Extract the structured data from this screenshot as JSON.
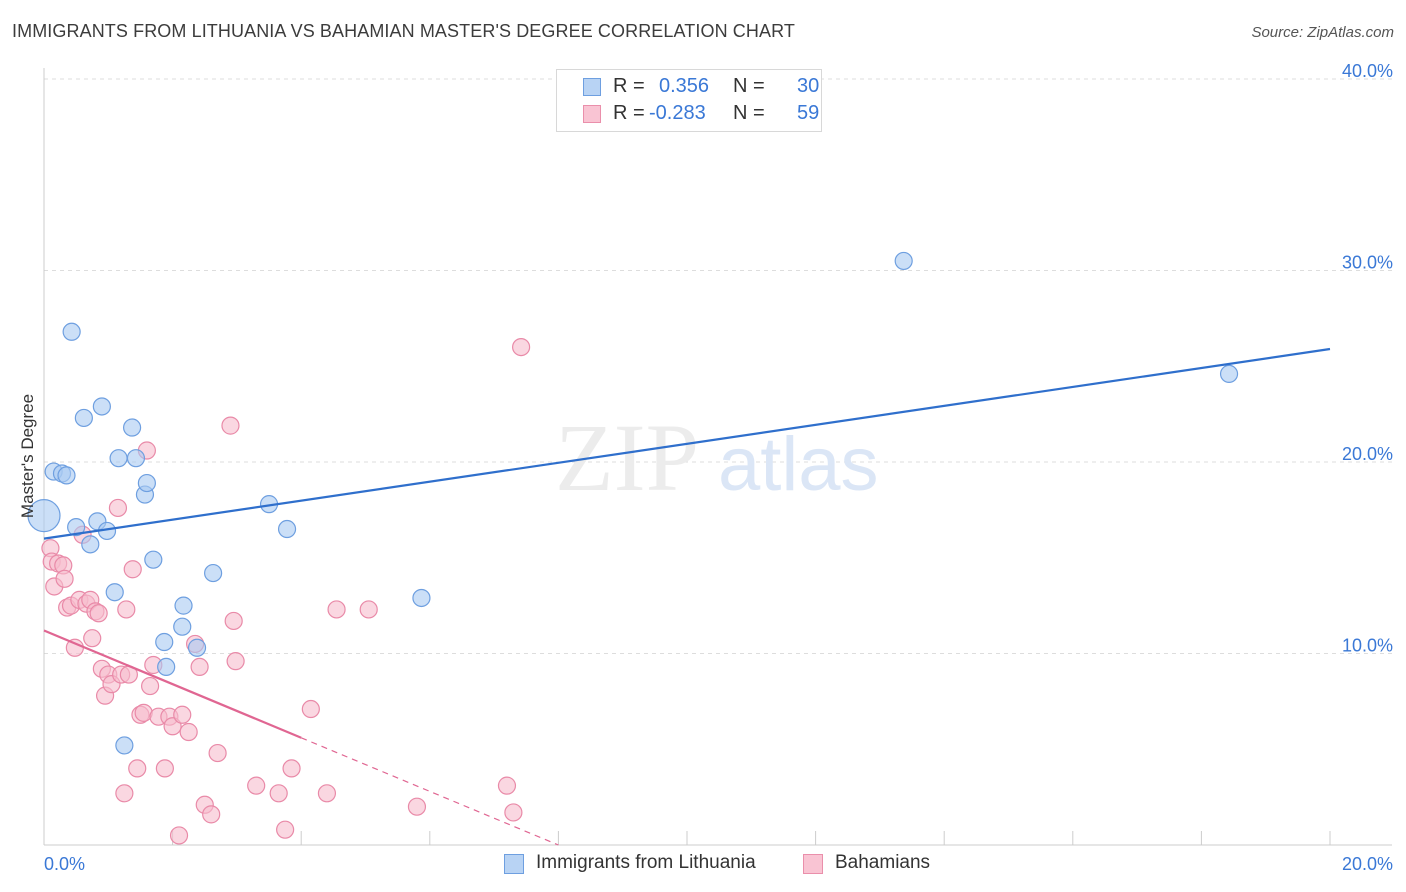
{
  "title": "IMMIGRANTS FROM LITHUANIA VS BAHAMIAN MASTER'S DEGREE CORRELATION CHART",
  "source": "Source: ZipAtlas.com",
  "watermark": {
    "zip": "ZIP",
    "atlas": "atlas"
  },
  "legend": {
    "r_label": "R =",
    "n_label": "N =",
    "entries": [
      {
        "r": "0.356",
        "n": "30",
        "fill": "#b8d3f4",
        "stroke": "#6e9fe0"
      },
      {
        "r": "-0.283",
        "n": "59",
        "fill": "#f9c4d3",
        "stroke": "#ea8fab"
      }
    ]
  },
  "colors": {
    "blue_fill": "#a9c9f1",
    "blue_stroke": "#6e9fe0",
    "blue_line": "#2f6fcc",
    "pink_fill": "#f6bccd",
    "pink_stroke": "#e98aa8",
    "pink_line": "#e06692",
    "axis_text": "#3a78d6",
    "grid": "#dddddd"
  },
  "chart_data": {
    "type": "scatter",
    "title": "IMMIGRANTS FROM LITHUANIA VS BAHAMIAN MASTER'S DEGREE CORRELATION CHART",
    "xlabel": "",
    "ylabel": "Master's Degree",
    "xlim": [
      0,
      20
    ],
    "ylim": [
      0,
      40
    ],
    "x_tick_labels": [
      "0.0%",
      "20.0%"
    ],
    "y_tick_values": [
      10,
      20,
      30,
      40
    ],
    "y_tick_labels": [
      "10.0%",
      "20.0%",
      "30.0%",
      "40.0%"
    ],
    "legend_position": "top-center",
    "series": [
      {
        "name": "Immigrants from Lithuania",
        "color": "blue",
        "points": [
          [
            0.0,
            17.2
          ],
          [
            0.15,
            19.5
          ],
          [
            0.28,
            19.4
          ],
          [
            0.35,
            19.3
          ],
          [
            0.43,
            26.8
          ],
          [
            0.5,
            16.6
          ],
          [
            0.62,
            22.3
          ],
          [
            0.72,
            15.7
          ],
          [
            0.83,
            16.9
          ],
          [
            0.9,
            22.9
          ],
          [
            0.98,
            16.4
          ],
          [
            1.1,
            13.2
          ],
          [
            1.16,
            20.2
          ],
          [
            1.25,
            5.2
          ],
          [
            1.37,
            21.8
          ],
          [
            1.43,
            20.2
          ],
          [
            1.57,
            18.3
          ],
          [
            1.6,
            18.9
          ],
          [
            1.7,
            14.9
          ],
          [
            1.87,
            10.6
          ],
          [
            1.9,
            9.3
          ],
          [
            2.15,
            11.4
          ],
          [
            2.17,
            12.5
          ],
          [
            2.38,
            10.3
          ],
          [
            2.63,
            14.2
          ],
          [
            3.5,
            17.8
          ],
          [
            3.78,
            16.5
          ],
          [
            5.87,
            12.9
          ],
          [
            13.37,
            30.5
          ],
          [
            18.43,
            24.6
          ]
        ],
        "trend": {
          "x0": 0.0,
          "y0": 16.0,
          "x1": 20.0,
          "y1": 25.9,
          "dashed_from": null
        }
      },
      {
        "name": "Bahamians",
        "color": "pink",
        "points": [
          [
            0.1,
            15.5
          ],
          [
            0.12,
            14.8
          ],
          [
            0.16,
            13.5
          ],
          [
            0.22,
            14.7
          ],
          [
            0.3,
            14.6
          ],
          [
            0.32,
            13.9
          ],
          [
            0.36,
            12.4
          ],
          [
            0.42,
            12.5
          ],
          [
            0.48,
            10.3
          ],
          [
            0.55,
            12.8
          ],
          [
            0.6,
            16.2
          ],
          [
            0.66,
            12.6
          ],
          [
            0.72,
            12.8
          ],
          [
            0.75,
            10.8
          ],
          [
            0.8,
            12.2
          ],
          [
            0.85,
            12.1
          ],
          [
            0.9,
            9.2
          ],
          [
            0.95,
            7.8
          ],
          [
            1.0,
            8.9
          ],
          [
            1.05,
            8.4
          ],
          [
            1.15,
            17.6
          ],
          [
            1.2,
            8.9
          ],
          [
            1.25,
            2.7
          ],
          [
            1.28,
            12.3
          ],
          [
            1.32,
            8.9
          ],
          [
            1.38,
            14.4
          ],
          [
            1.45,
            4.0
          ],
          [
            1.5,
            6.8
          ],
          [
            1.55,
            6.9
          ],
          [
            1.6,
            20.6
          ],
          [
            1.65,
            8.3
          ],
          [
            1.7,
            9.4
          ],
          [
            1.78,
            6.7
          ],
          [
            1.88,
            4.0
          ],
          [
            1.95,
            6.7
          ],
          [
            2.0,
            6.2
          ],
          [
            2.1,
            0.5
          ],
          [
            2.15,
            6.8
          ],
          [
            2.25,
            5.9
          ],
          [
            2.35,
            10.5
          ],
          [
            2.42,
            9.3
          ],
          [
            2.5,
            2.1
          ],
          [
            2.6,
            1.6
          ],
          [
            2.7,
            4.8
          ],
          [
            2.9,
            21.9
          ],
          [
            2.95,
            11.7
          ],
          [
            2.98,
            9.6
          ],
          [
            3.3,
            3.1
          ],
          [
            3.65,
            2.7
          ],
          [
            3.75,
            0.8
          ],
          [
            3.85,
            4.0
          ],
          [
            4.15,
            7.1
          ],
          [
            4.4,
            2.7
          ],
          [
            4.55,
            12.3
          ],
          [
            5.05,
            12.3
          ],
          [
            5.8,
            2.0
          ],
          [
            7.2,
            3.1
          ],
          [
            7.3,
            1.7
          ],
          [
            7.42,
            26.0
          ]
        ],
        "trend": {
          "x0": 0.0,
          "y0": 11.2,
          "x1": 8.0,
          "y1": 0.0,
          "dashed_from": 8.0
        }
      }
    ]
  }
}
